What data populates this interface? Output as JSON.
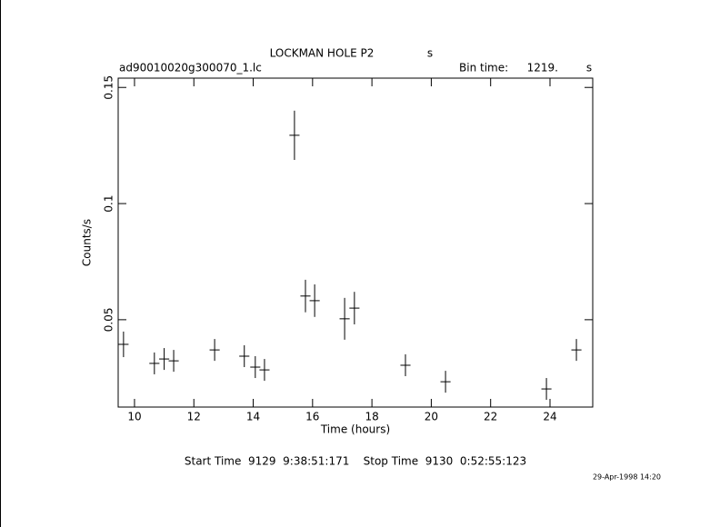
{
  "chart_data": {
    "type": "errorbar",
    "title": "LOCKMAN HOLE P2",
    "title_unit": "s",
    "file_label": "ad90010020g300070_1.lc",
    "bin_time_label": "Bin time:",
    "bin_time_value": "1219.",
    "bin_time_unit": "s",
    "x_label": "Time (hours)",
    "y_label": "Counts/s",
    "footer": "Start Time  9129  9:38:51:171    Stop Time  9130  0:52:55:123",
    "date_stamp": "29-Apr-1998 14:20",
    "xlim": [
      9.45,
      25.44
    ],
    "ylim": [
      0.0124,
      0.154
    ],
    "xticks": [
      10,
      12,
      14,
      16,
      18,
      20,
      22,
      24
    ],
    "yticks": [
      0.05,
      0.1,
      0.15
    ],
    "color": "#000000",
    "x": [
      9.63,
      10.67,
      11.0,
      11.32,
      12.7,
      13.7,
      14.07,
      14.38,
      15.39,
      15.76,
      16.07,
      17.08,
      17.41,
      19.13,
      20.48,
      23.88,
      24.89
    ],
    "xerr": [
      0.17,
      0.17,
      0.17,
      0.17,
      0.17,
      0.17,
      0.17,
      0.17,
      0.17,
      0.17,
      0.17,
      0.17,
      0.17,
      0.17,
      0.17,
      0.17,
      0.17
    ],
    "values": [
      0.0394,
      0.0312,
      0.0331,
      0.0323,
      0.037,
      0.0343,
      0.0296,
      0.0284,
      0.1294,
      0.0602,
      0.0582,
      0.0504,
      0.055,
      0.0304,
      0.0233,
      0.0202,
      0.037
    ],
    "errors": [
      0.0055,
      0.0047,
      0.0047,
      0.0047,
      0.0047,
      0.0047,
      0.0047,
      0.0047,
      0.0106,
      0.007,
      0.007,
      0.009,
      0.007,
      0.0047,
      0.0047,
      0.0047,
      0.0047
    ]
  }
}
